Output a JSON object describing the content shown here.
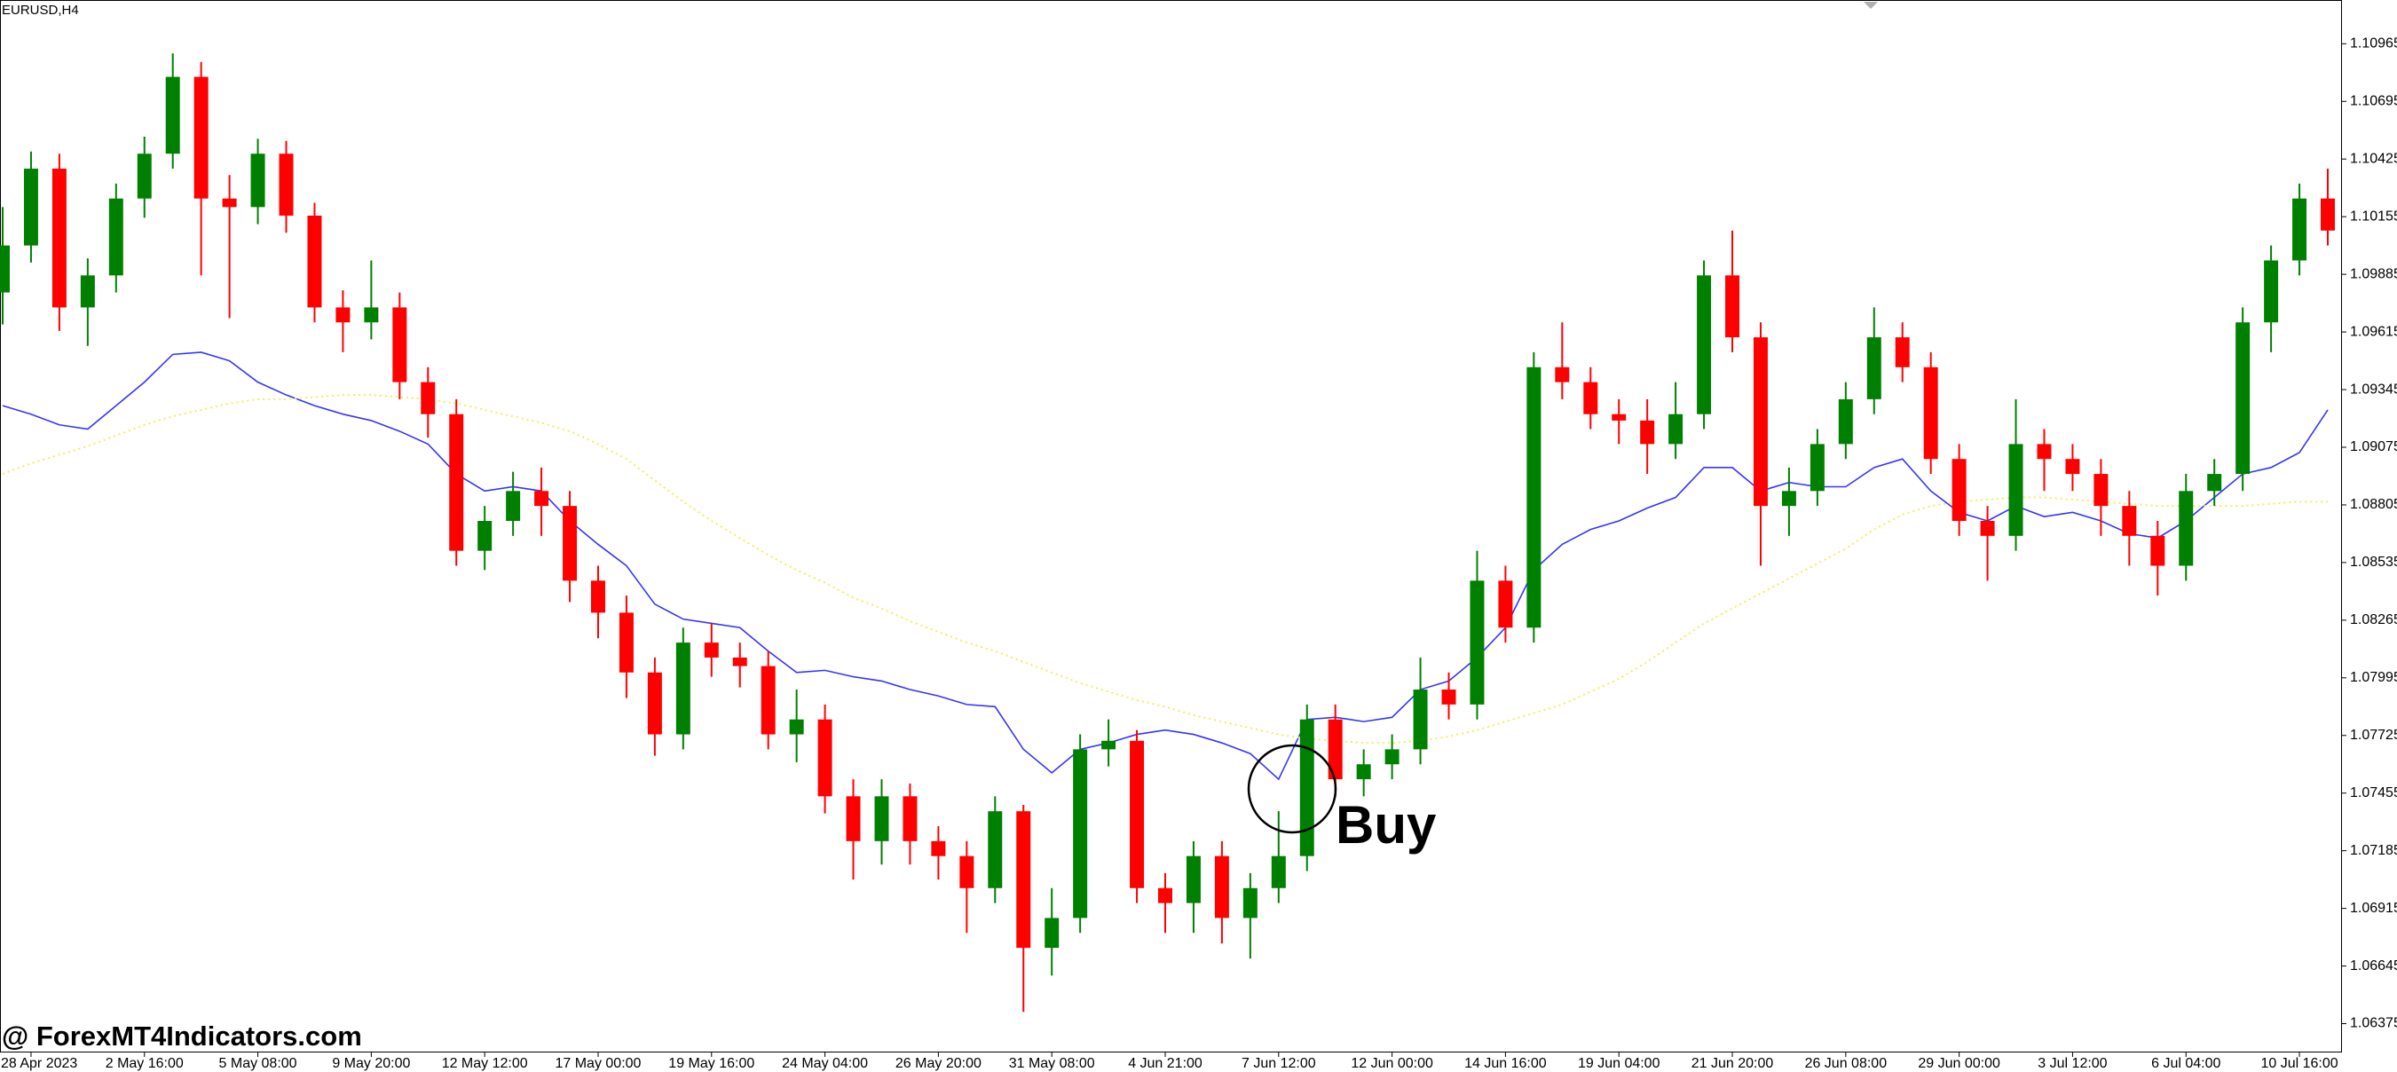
{
  "chart_data": {
    "type": "candlestick",
    "title": "EURUSD,H4",
    "watermark": "@ ForexMT4Indicators.com",
    "annotation": "Buy",
    "up_color": "#008000",
    "down_color": "#ff0000",
    "grid": false,
    "ylim": [
      1.0624,
      1.1117
    ],
    "yticks": [
      1.06375,
      1.06645,
      1.06915,
      1.07185,
      1.07455,
      1.07725,
      1.07995,
      1.08265,
      1.08535,
      1.08805,
      1.09075,
      1.09345,
      1.09615,
      1.09885,
      1.10155,
      1.10425,
      1.10695,
      1.10965
    ],
    "categories": [
      null,
      "28 Apr 2023",
      null,
      null,
      null,
      "2 May 16:00",
      null,
      null,
      null,
      "5 May 08:00",
      null,
      null,
      null,
      "9 May 20:00",
      null,
      null,
      null,
      "12 May 12:00",
      null,
      null,
      null,
      "17 May 00:00",
      null,
      null,
      null,
      "19 May 16:00",
      null,
      null,
      null,
      "24 May 04:00",
      null,
      null,
      null,
      "26 May 20:00",
      null,
      null,
      null,
      "31 May 08:00",
      null,
      null,
      null,
      "4 Jun 21:00",
      null,
      null,
      null,
      "7 Jun 12:00",
      null,
      null,
      null,
      "12 Jun 00:00",
      null,
      null,
      null,
      "14 Jun 16:00",
      null,
      null,
      null,
      "19 Jun 04:00",
      null,
      null,
      null,
      "21 Jun 20:00",
      null,
      null,
      null,
      "26 Jun 08:00",
      null,
      null,
      null,
      "29 Jun 00:00",
      null,
      null,
      null,
      "3 Jul 12:00",
      null,
      null,
      null,
      "6 Jul 04:00",
      null,
      null,
      null,
      "10 Jul 16:00",
      null
    ],
    "open": [
      1.098,
      1.1002,
      1.1038,
      1.0973,
      1.0988,
      1.1024,
      1.1045,
      1.1081,
      1.1024,
      1.102,
      1.1045,
      1.1016,
      1.0973,
      1.0966,
      1.0973,
      1.0938,
      1.0923,
      1.0859,
      1.0873,
      1.0887,
      1.088,
      1.0845,
      1.083,
      1.0802,
      1.0773,
      1.0816,
      1.0809,
      1.0805,
      1.0773,
      1.078,
      1.0744,
      1.0723,
      1.0744,
      1.0723,
      1.0716,
      1.0701,
      1.0737,
      1.0673,
      1.0687,
      1.0766,
      1.077,
      1.0701,
      1.0694,
      1.0716,
      1.0687,
      1.0701,
      1.0716,
      1.078,
      1.0752,
      1.0759,
      1.0766,
      1.0794,
      1.0787,
      1.0845,
      1.0823,
      1.0945,
      1.0938,
      1.0923,
      1.092,
      1.0909,
      1.0923,
      1.0988,
      1.0959,
      1.088,
      1.0887,
      1.0909,
      1.093,
      1.0959,
      1.0945,
      1.0902,
      1.0873,
      1.0866,
      1.0909,
      1.0902,
      1.0895,
      1.088,
      1.0866,
      1.0852,
      1.0887,
      1.0895,
      1.0966,
      1.0995,
      1.1024
    ],
    "high": [
      1.102,
      1.1046,
      1.1045,
      1.0996,
      1.1031,
      1.1053,
      1.1092,
      1.1088,
      1.1035,
      1.1052,
      1.1051,
      1.1022,
      1.0981,
      1.0995,
      1.098,
      1.0945,
      1.093,
      1.088,
      1.0896,
      1.0898,
      1.0887,
      1.0852,
      1.0838,
      1.0809,
      1.0823,
      1.0825,
      1.0816,
      1.0812,
      1.0794,
      1.0787,
      1.0752,
      1.0752,
      1.075,
      1.073,
      1.0723,
      1.0744,
      1.074,
      1.0701,
      1.0773,
      1.078,
      1.0775,
      1.0708,
      1.0723,
      1.0723,
      1.0708,
      1.0737,
      1.0787,
      1.0787,
      1.0766,
      1.0773,
      1.0809,
      1.0802,
      1.0859,
      1.0852,
      1.0952,
      1.0966,
      1.0945,
      1.093,
      1.093,
      1.0938,
      1.0995,
      1.1009,
      1.0966,
      1.0898,
      1.0916,
      1.0938,
      1.0973,
      1.0966,
      1.0952,
      1.0909,
      1.088,
      1.093,
      1.0916,
      1.0909,
      1.0902,
      1.0887,
      1.0873,
      1.0895,
      1.0902,
      1.0973,
      1.1002,
      1.1031,
      1.1038
    ],
    "low": [
      1.0965,
      1.0994,
      1.0962,
      1.0955,
      1.098,
      1.1015,
      1.1038,
      1.0988,
      1.0968,
      1.1012,
      1.1008,
      1.0966,
      1.0952,
      1.0958,
      1.093,
      1.0912,
      1.0852,
      1.085,
      1.0866,
      1.0866,
      1.0835,
      1.0818,
      1.079,
      1.0763,
      1.0766,
      1.08,
      1.0795,
      1.0766,
      1.076,
      1.0736,
      1.0705,
      1.0712,
      1.0712,
      1.0705,
      1.068,
      1.0694,
      1.0643,
      1.066,
      1.068,
      1.0758,
      1.0694,
      1.068,
      1.068,
      1.0675,
      1.0668,
      1.0694,
      1.0709,
      1.0744,
      1.0744,
      1.0752,
      1.0759,
      1.078,
      1.078,
      1.0816,
      1.0816,
      1.093,
      1.0916,
      1.0909,
      1.0895,
      1.0902,
      1.0916,
      1.0952,
      1.0852,
      1.0866,
      1.088,
      1.0902,
      1.0923,
      1.0938,
      1.0895,
      1.0866,
      1.0845,
      1.0859,
      1.0887,
      1.0887,
      1.0866,
      1.0852,
      1.0838,
      1.0845,
      1.088,
      1.0887,
      1.0952,
      1.0988,
      1.1002
    ],
    "close": [
      1.1002,
      1.1038,
      1.0973,
      1.0988,
      1.1024,
      1.1045,
      1.1081,
      1.1024,
      1.102,
      1.1045,
      1.1016,
      1.0973,
      1.0966,
      1.0973,
      1.0938,
      1.0923,
      1.0859,
      1.0873,
      1.0887,
      1.088,
      1.0845,
      1.083,
      1.0802,
      1.0773,
      1.0816,
      1.0809,
      1.0805,
      1.0773,
      1.078,
      1.0744,
      1.0723,
      1.0744,
      1.0723,
      1.0716,
      1.0701,
      1.0737,
      1.0673,
      1.0687,
      1.0766,
      1.077,
      1.0701,
      1.0694,
      1.0716,
      1.0687,
      1.0701,
      1.0716,
      1.078,
      1.0752,
      1.0759,
      1.0766,
      1.0794,
      1.0787,
      1.0845,
      1.0823,
      1.0945,
      1.0938,
      1.0923,
      1.092,
      1.0909,
      1.0923,
      1.0988,
      1.0959,
      1.088,
      1.0887,
      1.0909,
      1.093,
      1.0959,
      1.0945,
      1.0902,
      1.0873,
      1.0866,
      1.0909,
      1.0902,
      1.0895,
      1.088,
      1.0866,
      1.0852,
      1.0887,
      1.0895,
      1.0966,
      1.0995,
      1.1024,
      1.1009
    ],
    "overlays": [
      {
        "color": "#3434ff",
        "style": "solid",
        "values": [
          1.0927,
          1.0923,
          1.0918,
          1.0916,
          1.0927,
          1.0938,
          1.0951,
          1.0952,
          1.0948,
          1.0938,
          1.0932,
          1.0927,
          1.0923,
          1.092,
          1.0915,
          1.0909,
          1.0895,
          1.0887,
          1.0889,
          1.0887,
          1.0873,
          1.0862,
          1.0852,
          1.0834,
          1.0827,
          1.0825,
          1.0823,
          1.0812,
          1.0802,
          1.0803,
          1.08,
          1.0798,
          1.0794,
          1.0791,
          1.0787,
          1.0786,
          1.0766,
          1.0755,
          1.0766,
          1.0769,
          1.0773,
          1.0775,
          1.0773,
          1.0769,
          1.0764,
          1.0752,
          1.078,
          1.0781,
          1.0779,
          1.0781,
          1.0794,
          1.0798,
          1.0809,
          1.0823,
          1.085,
          1.0862,
          1.0869,
          1.0873,
          1.0879,
          1.0884,
          1.0898,
          1.0898,
          1.0887,
          1.0891,
          1.0889,
          1.0889,
          1.0898,
          1.0902,
          1.0887,
          1.0877,
          1.0873,
          1.088,
          1.0875,
          1.0877,
          1.0873,
          1.0867,
          1.0865,
          1.0873,
          1.0884,
          1.0895,
          1.0898,
          1.0905,
          1.0925
        ]
      },
      {
        "color": "#f2ee55",
        "style": "dotted",
        "values": [
          1.0895,
          1.09,
          1.0904,
          1.0908,
          1.0913,
          1.0918,
          1.0922,
          1.0925,
          1.0928,
          1.093,
          1.093,
          1.0931,
          1.0932,
          1.0932,
          1.0931,
          1.093,
          1.0928,
          1.0925,
          1.0922,
          1.0919,
          1.0915,
          1.0909,
          1.0902,
          1.0892,
          1.0882,
          1.0873,
          1.0865,
          1.0857,
          1.085,
          1.0844,
          1.0837,
          1.0832,
          1.0826,
          1.0821,
          1.0816,
          1.0812,
          1.0807,
          1.0802,
          1.0797,
          1.0793,
          1.0789,
          1.0786,
          1.0782,
          1.0779,
          1.0776,
          1.0773,
          1.0771,
          1.077,
          1.0769,
          1.0769,
          1.077,
          1.0772,
          1.0775,
          1.0779,
          1.0783,
          1.0787,
          1.0793,
          1.0799,
          1.0807,
          1.0816,
          1.0825,
          1.0832,
          1.0839,
          1.0846,
          1.0853,
          1.086,
          1.0869,
          1.0876,
          1.088,
          1.0882,
          1.0883,
          1.0884,
          1.0884,
          1.0883,
          1.0882,
          1.0881,
          1.088,
          1.088,
          1.088,
          1.088,
          1.0881,
          1.0882,
          1.0882
        ]
      }
    ]
  }
}
